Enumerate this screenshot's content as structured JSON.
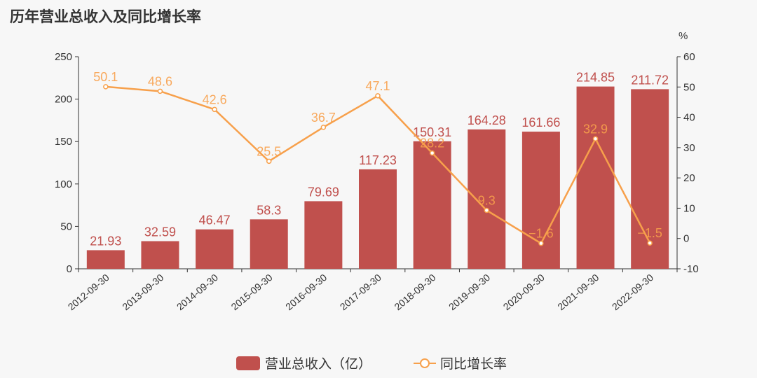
{
  "chart_data": {
    "type": "bar+line",
    "title": "历年营业总收入及同比增长率",
    "categories": [
      "2012-09-30",
      "2013-09-30",
      "2014-09-30",
      "2015-09-30",
      "2016-09-30",
      "2017-09-30",
      "2018-09-30",
      "2019-09-30",
      "2020-09-30",
      "2021-09-30",
      "2022-09-30"
    ],
    "series": [
      {
        "name": "营业总收入（亿）",
        "type": "bar",
        "axis": "left",
        "color": "#c0504d",
        "values": [
          21.93,
          32.59,
          46.47,
          58.3,
          79.69,
          117.23,
          150.31,
          164.28,
          161.66,
          214.85,
          211.72
        ]
      },
      {
        "name": "同比增长率",
        "type": "line",
        "axis": "right",
        "color": "#f7a04b",
        "values": [
          50.1,
          48.6,
          42.6,
          25.5,
          36.7,
          47.1,
          28.2,
          9.3,
          -1.6,
          32.9,
          -1.5
        ]
      }
    ],
    "left_axis": {
      "ylim": [
        0,
        250
      ],
      "ticks": [
        0,
        50,
        100,
        150,
        200,
        250
      ]
    },
    "right_axis": {
      "label": "%",
      "ylim": [
        -10,
        60
      ],
      "ticks": [
        -10,
        0,
        10,
        20,
        30,
        40,
        50,
        60
      ]
    },
    "legend": {
      "placement": "bottom-center"
    },
    "grid": false
  }
}
